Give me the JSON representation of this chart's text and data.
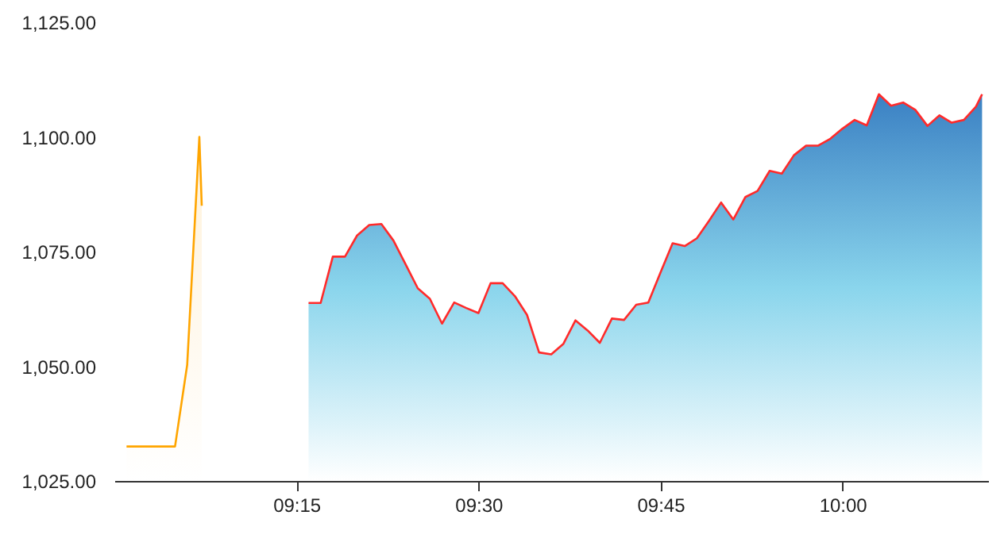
{
  "chart_data": {
    "type": "area",
    "xlim": [
      9,
      10.2
    ],
    "ylim": [
      1025,
      1125
    ],
    "xticks": [
      {
        "value": 9.25,
        "label": "09:15"
      },
      {
        "value": 9.5,
        "label": "09:30"
      },
      {
        "value": 9.75,
        "label": "09:45"
      },
      {
        "value": 10,
        "label": "10:00"
      }
    ],
    "yticks": [
      {
        "value": 1025,
        "label": "1,025.00"
      },
      {
        "value": 1050,
        "label": "1,050.00"
      },
      {
        "value": 1075,
        "label": "1,075.00"
      },
      {
        "value": 1100,
        "label": "1,100.00"
      },
      {
        "value": 1125,
        "label": "1,125.00"
      }
    ],
    "grid": false,
    "series": [
      {
        "color": "#ffa500",
        "x": [
          9.0167,
          9.0833,
          9.1,
          9.1167,
          9.12
        ],
        "values": [
          1032.5,
          1032.5,
          1050.3,
          1100,
          1085
        ]
      },
      {
        "color": "#ff2a2a",
        "x": [
          9.2667,
          9.2833,
          9.3,
          9.3167,
          9.3333,
          9.35,
          9.3667,
          9.3833,
          9.4,
          9.4167,
          9.4333,
          9.45,
          9.4667,
          9.4833,
          9.5,
          9.5167,
          9.5333,
          9.55,
          9.5667,
          9.5833,
          9.6,
          9.6167,
          9.6333,
          9.65,
          9.6667,
          9.6833,
          9.7,
          9.7167,
          9.7333,
          9.75,
          9.7667,
          9.7833,
          9.8,
          9.8167,
          9.8333,
          9.85,
          9.8667,
          9.8833,
          9.9,
          9.9167,
          9.9333,
          9.95,
          9.9667,
          9.9833,
          10,
          10.0167,
          10.0333,
          10.05,
          10.0667,
          10.0833,
          10.1,
          10.1167,
          10.1333,
          10.15,
          10.1667,
          10.1833,
          10.1917
        ],
        "values": [
          1063.8,
          1063.8,
          1073.9,
          1073.9,
          1078.5,
          1080.8,
          1081,
          1077.4,
          1072.2,
          1067,
          1064.7,
          1059.3,
          1063.9,
          1062.7,
          1061.6,
          1068.1,
          1068.1,
          1065.3,
          1061.2,
          1053,
          1052.6,
          1054.9,
          1060,
          1057.8,
          1055.1,
          1060.4,
          1060.1,
          1063.4,
          1063.9,
          1070.4,
          1076.8,
          1076.2,
          1077.9,
          1081.7,
          1085.7,
          1082,
          1086.9,
          1088.2,
          1092.6,
          1092,
          1096,
          1098.1,
          1098.1,
          1099.6,
          1101.8,
          1103.7,
          1102.5,
          1109.3,
          1106.8,
          1107.5,
          1105.9,
          1102.4,
          1104.7,
          1103.1,
          1103.7,
          1106.6,
          1109.3
        ]
      }
    ]
  }
}
